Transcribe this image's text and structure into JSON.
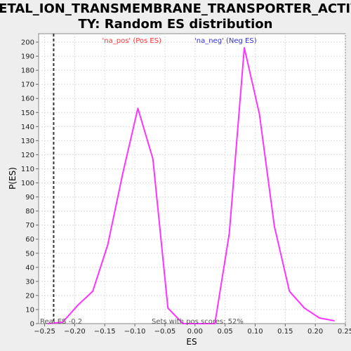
{
  "chart_data": {
    "type": "line",
    "title_line1": "METAL_ION_TRANSMEMBRANE_TRANSPORTER_ACTIVI",
    "title_line2": "TY: Random ES distribution",
    "xlabel": "ES",
    "ylabel": "P(ES)",
    "xlim": [
      -0.26,
      0.25
    ],
    "ylim": [
      0,
      206
    ],
    "x_ticks": [
      -0.25,
      -0.2,
      -0.15,
      -0.1,
      -0.05,
      0.0,
      0.05,
      0.1,
      0.15,
      0.2,
      0.25
    ],
    "x_tick_labels": [
      "−0.25",
      "−0.20",
      "−0.15",
      "−0.10",
      "−0.05",
      "0.00",
      "0.05",
      "0.10",
      "0.15",
      "0.20",
      "0.25"
    ],
    "y_ticks": [
      0,
      10,
      20,
      30,
      40,
      50,
      60,
      70,
      80,
      90,
      100,
      110,
      120,
      130,
      140,
      150,
      160,
      170,
      180,
      190,
      200
    ],
    "grid": true,
    "legend": [
      {
        "label": "'na_pos' (Pos ES)",
        "color": "#ff3333"
      },
      {
        "label": "'na_neg' (Neg ES)",
        "color": "#3333cc"
      }
    ],
    "series": [
      {
        "color": "#ff33ff",
        "x": [
          -0.245,
          -0.22,
          -0.195,
          -0.17,
          -0.145,
          -0.12,
          -0.095,
          -0.07,
          -0.045,
          -0.02,
          0.005,
          0.033,
          0.057,
          0.082,
          0.107,
          0.132,
          0.157,
          0.182,
          0.207,
          0.232
        ],
        "y": [
          0,
          1,
          13,
          23,
          56,
          107,
          153,
          117,
          11,
          0,
          0,
          0,
          64,
          196,
          149,
          69,
          23,
          11,
          4,
          2
        ]
      }
    ],
    "real_es": -0.235,
    "annotations": {
      "real_es_label": "Real ES -0.2",
      "pos_scores_label": "Sets with pos scores: 52%"
    }
  }
}
